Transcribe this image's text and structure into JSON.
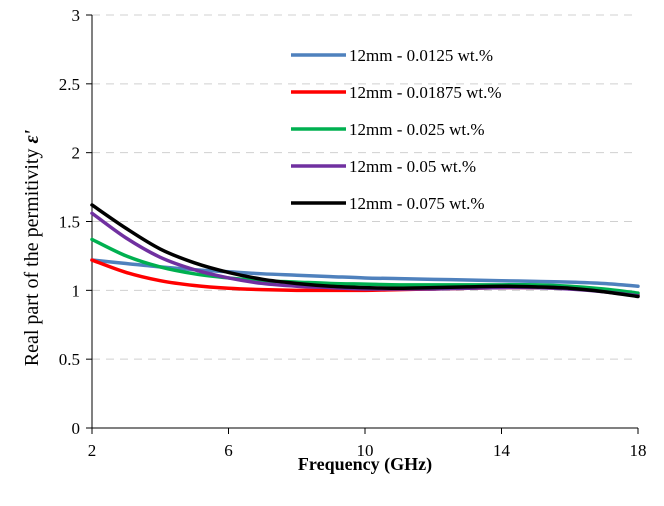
{
  "chart_data": {
    "type": "line",
    "xlabel": "Frequency (GHz)",
    "ylabel": "Real part of the permitivity ",
    "ylabel_symbol": "ε'",
    "xlim": [
      2,
      18
    ],
    "ylim": [
      0,
      3
    ],
    "x_ticks": [
      "2",
      "6",
      "10",
      "14",
      "18"
    ],
    "y_ticks": [
      "0",
      "0.5",
      "1",
      "1.5",
      "2",
      "2.5",
      "3"
    ],
    "grid": "horizontal dashed",
    "legend_position": "top-right",
    "x": [
      2,
      3,
      4,
      5,
      6,
      7,
      8,
      9,
      10,
      11,
      12,
      13,
      14,
      15,
      16,
      17,
      18
    ],
    "series": [
      {
        "name": "12mm - 0.0125 wt.%",
        "color": "#4f81bd",
        "values": [
          1.22,
          1.195,
          1.17,
          1.15,
          1.135,
          1.12,
          1.11,
          1.1,
          1.09,
          1.085,
          1.08,
          1.075,
          1.07,
          1.065,
          1.06,
          1.05,
          1.03
        ]
      },
      {
        "name": "12mm - 0.01875 wt.%",
        "color": "#ff0000",
        "values": [
          1.22,
          1.13,
          1.07,
          1.035,
          1.015,
          1.005,
          1.0,
          1.0,
          1.0,
          1.005,
          1.01,
          1.015,
          1.02,
          1.02,
          1.015,
          1.0,
          0.97
        ]
      },
      {
        "name": "12mm - 0.025 wt.%",
        "color": "#00b050",
        "values": [
          1.37,
          1.25,
          1.17,
          1.12,
          1.09,
          1.07,
          1.06,
          1.05,
          1.045,
          1.04,
          1.04,
          1.04,
          1.04,
          1.04,
          1.03,
          1.01,
          0.98
        ]
      },
      {
        "name": "12mm - 0.05 wt.%",
        "color": "#7030a0",
        "values": [
          1.56,
          1.38,
          1.24,
          1.15,
          1.09,
          1.05,
          1.03,
          1.02,
          1.01,
          1.01,
          1.01,
          1.015,
          1.02,
          1.02,
          1.01,
          0.99,
          0.96
        ]
      },
      {
        "name": "12mm - 0.075 wt.%",
        "color": "#000000",
        "values": [
          1.62,
          1.45,
          1.3,
          1.2,
          1.13,
          1.08,
          1.05,
          1.03,
          1.02,
          1.015,
          1.02,
          1.025,
          1.03,
          1.025,
          1.015,
          0.99,
          0.955
        ]
      }
    ]
  }
}
